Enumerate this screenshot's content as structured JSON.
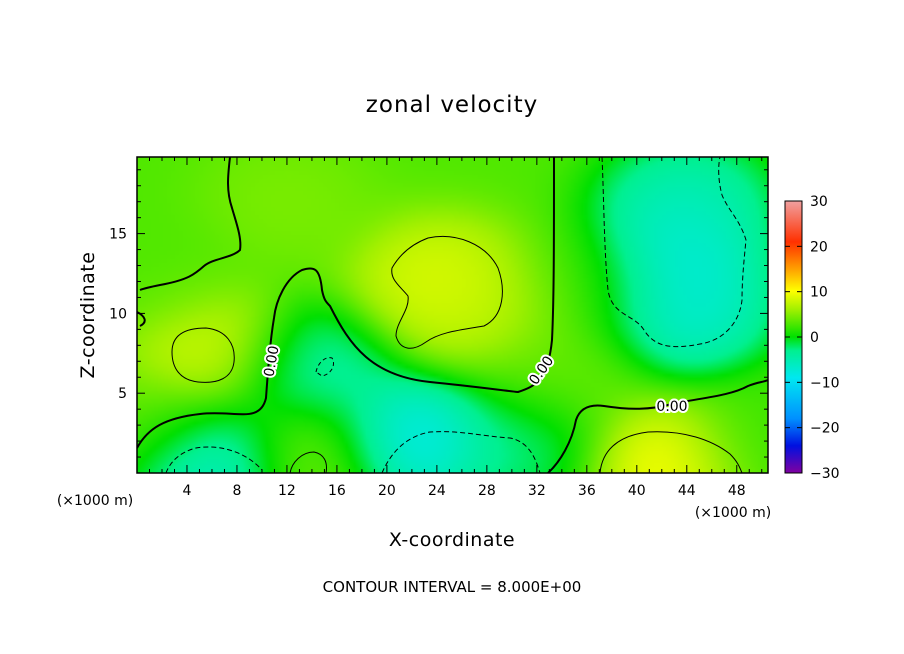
{
  "chart_data": {
    "type": "heatmap",
    "title": "zonal velocity",
    "xlabel": "X-coordinate",
    "ylabel": "Z-coordinate",
    "x_unit_label": "(×1000 m)",
    "x_ticks": [
      4,
      8,
      12,
      16,
      20,
      24,
      28,
      32,
      36,
      40,
      44,
      48
    ],
    "y_ticks": [
      5,
      10,
      15
    ],
    "xlim": [
      0,
      50.5
    ],
    "ylim": [
      0,
      19.8
    ],
    "colorbar": {
      "ticks": [
        30,
        20,
        10,
        0,
        -10,
        -20,
        -30
      ],
      "tick_labels": [
        "30",
        "20",
        "10",
        "0",
        "−10",
        "−20",
        "−30"
      ],
      "range": [
        -30,
        30
      ],
      "colors": [
        "#8000a0",
        "#0010e0",
        "#0090ff",
        "#00e8f0",
        "#00f090",
        "#00e000",
        "#a0f000",
        "#ffff00",
        "#ffa000",
        "#ff3000",
        "#f0a0a0"
      ]
    },
    "contour_interval_text": "CONTOUR INTERVAL = 8.000E+00",
    "contour_labels": [
      "0.00",
      "0.00",
      "0.00"
    ],
    "field_features": [
      {
        "x": 6,
        "z": 7.8,
        "value": 10
      },
      {
        "x": 24,
        "z": 12,
        "value": 10
      },
      {
        "x": 27,
        "z": 10.5,
        "value": 8
      },
      {
        "x": 42,
        "z": 0.5,
        "value": 12
      },
      {
        "x": 6,
        "z": 0.5,
        "value": -10
      },
      {
        "x": 22,
        "z": 2,
        "value": -12
      },
      {
        "x": 43,
        "z": 13.5,
        "value": -10
      },
      {
        "x": 44,
        "z": 10,
        "value": -9
      },
      {
        "x": 44,
        "z": 17,
        "value": -7
      },
      {
        "x": 14,
        "z": 6.5,
        "value": -6
      },
      {
        "x": 14,
        "z": 1,
        "value": 6
      },
      {
        "x": 31,
        "z": 1.5,
        "value": -4
      },
      {
        "x": 1,
        "z": 3,
        "value": 4
      },
      {
        "x": 12,
        "z": 17,
        "value": 5
      },
      {
        "x": 36,
        "z": 12,
        "value": 3
      },
      {
        "x": 34,
        "z": 6,
        "value": 4
      },
      {
        "x": 50,
        "z": 2,
        "value": 2
      },
      {
        "x": 2,
        "z": 12,
        "value": 3
      }
    ]
  }
}
